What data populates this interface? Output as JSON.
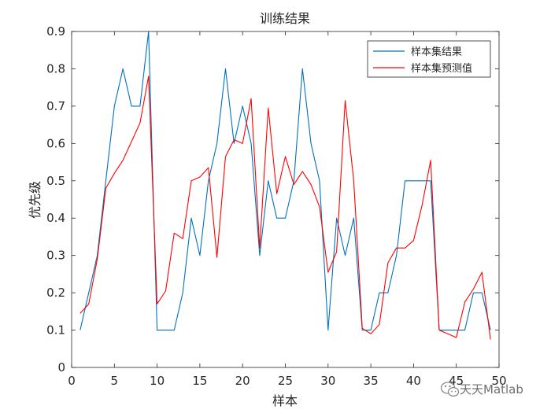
{
  "chart_data": {
    "type": "line",
    "title": "训练结果",
    "xlabel": "样本",
    "ylabel": "优先级",
    "xlim": [
      0,
      50
    ],
    "ylim": [
      0,
      0.9
    ],
    "x_ticks": [
      0,
      5,
      10,
      15,
      20,
      25,
      30,
      35,
      40,
      45,
      50
    ],
    "y_ticks": [
      0,
      0.1,
      0.2,
      0.3,
      0.4,
      0.5,
      0.6,
      0.7,
      0.8,
      0.9
    ],
    "x_tick_labels": [
      "0",
      "5",
      "10",
      "15",
      "20",
      "25",
      "30",
      "35",
      "40",
      "45",
      "50"
    ],
    "y_tick_labels": [
      "0",
      "0.1",
      "0.2",
      "0.3",
      "0.4",
      "0.5",
      "0.6",
      "0.7",
      "0.8",
      "0.9"
    ],
    "grid": false,
    "legend_position": "top-right",
    "x": [
      1,
      2,
      3,
      4,
      5,
      6,
      7,
      8,
      9,
      10,
      11,
      12,
      13,
      14,
      15,
      16,
      17,
      18,
      19,
      20,
      21,
      22,
      23,
      24,
      25,
      26,
      27,
      28,
      29,
      30,
      31,
      32,
      33,
      34,
      35,
      36,
      37,
      38,
      39,
      40,
      41,
      42,
      43,
      44,
      45,
      46,
      47,
      48,
      49
    ],
    "series": [
      {
        "name": "样本集结果",
        "color": "#0072bd",
        "values": [
          0.1,
          0.2,
          0.3,
          0.5,
          0.7,
          0.8,
          0.7,
          0.7,
          0.9,
          0.1,
          0.1,
          0.1,
          0.2,
          0.4,
          0.3,
          0.5,
          0.6,
          0.8,
          0.6,
          0.7,
          0.6,
          0.3,
          0.5,
          0.4,
          0.4,
          0.5,
          0.8,
          0.6,
          0.5,
          0.1,
          0.4,
          0.3,
          0.4,
          0.1,
          0.1,
          0.2,
          0.2,
          0.3,
          0.5,
          0.5,
          0.5,
          0.5,
          0.1,
          0.1,
          0.1,
          0.1,
          0.2,
          0.2,
          0.1
        ]
      },
      {
        "name": "样本集预测值",
        "color": "#ff0000",
        "values": [
          0.145,
          0.17,
          0.29,
          0.48,
          0.52,
          0.555,
          0.605,
          0.655,
          0.78,
          0.17,
          0.205,
          0.36,
          0.345,
          0.5,
          0.51,
          0.535,
          0.295,
          0.565,
          0.61,
          0.6,
          0.72,
          0.32,
          0.695,
          0.465,
          0.565,
          0.49,
          0.525,
          0.49,
          0.43,
          0.255,
          0.31,
          0.715,
          0.5,
          0.105,
          0.09,
          0.115,
          0.28,
          0.32,
          0.32,
          0.34,
          0.435,
          0.555,
          0.1,
          0.09,
          0.08,
          0.175,
          0.21,
          0.255,
          0.075
        ]
      }
    ]
  },
  "watermark": {
    "icon": "wechat-icon",
    "text": "天天Matlab"
  }
}
